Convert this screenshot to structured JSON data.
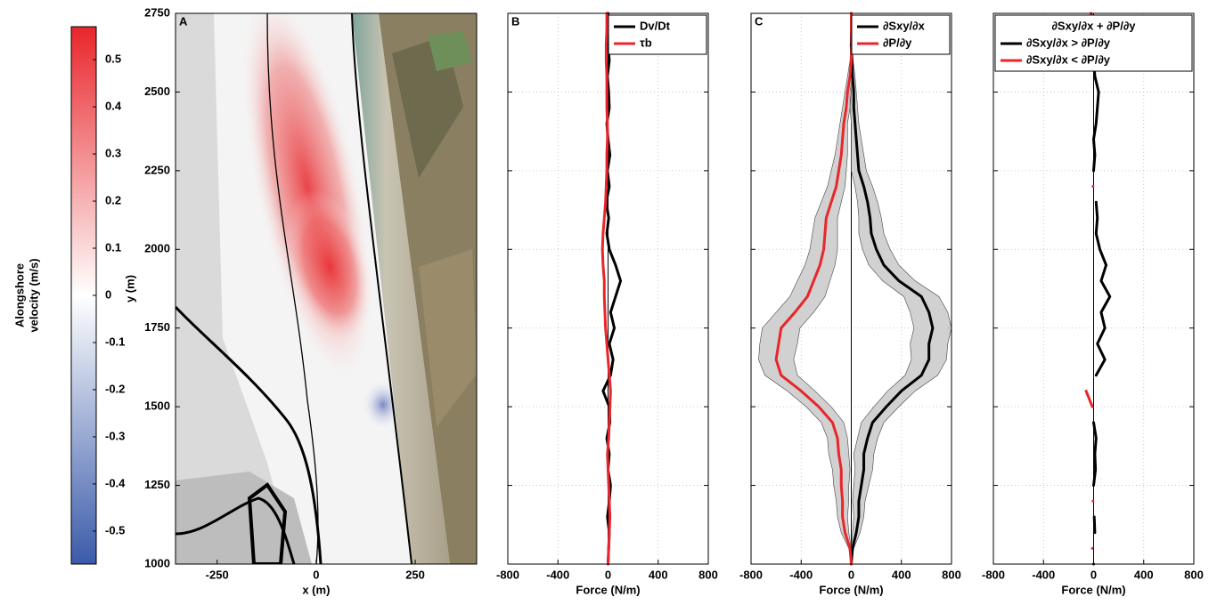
{
  "chart_data": [
    {
      "type": "colorbar",
      "ylabel_lines": [
        "Alongshore",
        "velocity (m/s)"
      ],
      "ylim": [
        -0.57,
        0.57
      ],
      "yticks": [
        -0.5,
        -0.4,
        -0.3,
        -0.2,
        -0.1,
        0,
        0.1,
        0.2,
        0.3,
        0.4,
        0.5
      ],
      "colormap": [
        "#3b5ba9",
        "#ffffff",
        "#e8262b"
      ]
    },
    {
      "type": "map",
      "panel": "A",
      "xlabel": "x (m)",
      "ylabel": "y (m)",
      "xlim": [
        -355,
        405
      ],
      "xticks": [
        -250,
        0,
        250
      ],
      "ylim": [
        1000,
        2750
      ],
      "yticks": [
        1000,
        1250,
        1500,
        1750,
        2000,
        2250,
        2500,
        2750
      ]
    },
    {
      "type": "line",
      "panel": "B",
      "xlabel": "Force (N/m)",
      "xlim": [
        -800,
        800
      ],
      "xticks": [
        -800,
        -400,
        0,
        400,
        800
      ],
      "ylim": [
        1000,
        2750
      ],
      "yticks": [
        1250,
        1500,
        1750,
        2000,
        2250,
        2500
      ],
      "ytick_labels": false,
      "grid": true,
      "y": [
        1000,
        1050,
        1100,
        1150,
        1200,
        1250,
        1300,
        1350,
        1400,
        1450,
        1500,
        1550,
        1600,
        1650,
        1700,
        1750,
        1800,
        1850,
        1900,
        1950,
        2000,
        2050,
        2100,
        2150,
        2200,
        2250,
        2300,
        2350,
        2400,
        2450,
        2500,
        2550,
        2600,
        2650,
        2700,
        2750
      ],
      "series": [
        {
          "name": "Dv/Dt",
          "color": "#000000",
          "values": [
            0,
            5,
            10,
            -5,
            10,
            20,
            0,
            10,
            -10,
            15,
            10,
            -40,
            20,
            40,
            10,
            50,
            20,
            60,
            100,
            60,
            10,
            -10,
            5,
            -15,
            10,
            -5,
            15,
            0,
            -10,
            10,
            5,
            -5,
            10,
            0,
            -5,
            0
          ]
        },
        {
          "name": "τb",
          "color": "#e8262b",
          "values": [
            0,
            5,
            10,
            15,
            10,
            5,
            0,
            -5,
            5,
            10,
            15,
            20,
            10,
            0,
            -10,
            -20,
            -25,
            -30,
            -30,
            -40,
            -45,
            -40,
            -30,
            -20,
            -15,
            -10,
            -10,
            -5,
            -5,
            -10,
            -10,
            -10,
            -15,
            -15,
            -10,
            -10
          ]
        }
      ]
    },
    {
      "type": "line",
      "panel": "C",
      "xlabel": "Force (N/m)",
      "xlim": [
        -800,
        800
      ],
      "xticks": [
        -800,
        -400,
        0,
        400,
        800
      ],
      "ylim": [
        1000,
        2750
      ],
      "yticks": [
        1250,
        1500,
        1750,
        2000,
        2250,
        2500
      ],
      "ytick_labels": false,
      "grid": true,
      "band_color": "#cccccc",
      "y": [
        1000,
        1050,
        1100,
        1150,
        1200,
        1250,
        1300,
        1350,
        1400,
        1450,
        1500,
        1550,
        1600,
        1650,
        1700,
        1750,
        1800,
        1850,
        1900,
        1950,
        2000,
        2050,
        2100,
        2150,
        2200,
        2250,
        2300,
        2350,
        2400,
        2450,
        2500,
        2550,
        2600,
        2650,
        2700,
        2750
      ],
      "series": [
        {
          "name": "∂Sxy/∂x",
          "color": "#000000",
          "values": [
            0,
            10,
            40,
            60,
            60,
            80,
            100,
            100,
            130,
            170,
            280,
            400,
            560,
            620,
            620,
            650,
            620,
            560,
            380,
            260,
            200,
            160,
            150,
            130,
            100,
            60,
            50,
            40,
            30,
            20,
            20,
            10,
            5,
            0,
            0,
            0
          ],
          "errors": [
            0,
            10,
            30,
            40,
            50,
            60,
            70,
            80,
            80,
            90,
            100,
            110,
            130,
            140,
            150,
            150,
            150,
            140,
            130,
            120,
            110,
            100,
            90,
            80,
            70,
            60,
            50,
            40,
            30,
            30,
            20,
            20,
            10,
            10,
            0,
            0
          ]
        },
        {
          "name": "∂P/∂y",
          "color": "#e8262b",
          "values": [
            0,
            -10,
            -50,
            -70,
            -70,
            -80,
            -80,
            -100,
            -110,
            -150,
            -260,
            -400,
            -560,
            -600,
            -580,
            -560,
            -450,
            -350,
            -300,
            -250,
            -220,
            -210,
            -200,
            -160,
            -120,
            -100,
            -80,
            -70,
            -60,
            -40,
            -30,
            -10,
            0,
            5,
            0,
            0
          ],
          "errors": [
            0,
            10,
            30,
            40,
            50,
            60,
            70,
            80,
            80,
            90,
            100,
            110,
            130,
            140,
            150,
            150,
            150,
            140,
            130,
            120,
            110,
            100,
            90,
            80,
            70,
            60,
            50,
            40,
            30,
            30,
            20,
            20,
            10,
            10,
            0,
            0
          ]
        }
      ]
    },
    {
      "type": "line",
      "panel": "D",
      "xlabel": "Force (N/m)",
      "xlim": [
        -800,
        800
      ],
      "xticks": [
        -800,
        -400,
        0,
        400,
        800
      ],
      "ylim": [
        1000,
        2750
      ],
      "yticks": [
        1250,
        1500,
        1750,
        2000,
        2250,
        2500
      ],
      "ytick_labels": false,
      "grid": true,
      "legend_title": "∂Sxy/∂x + ∂P/∂y",
      "y": [
        1000,
        1050,
        1100,
        1150,
        1200,
        1250,
        1300,
        1350,
        1400,
        1450,
        1500,
        1550,
        1600,
        1650,
        1700,
        1750,
        1800,
        1850,
        1900,
        1950,
        2000,
        2050,
        2100,
        2150,
        2200,
        2250,
        2300,
        2350,
        2400,
        2450,
        2500,
        2550,
        2600,
        2650,
        2700,
        2750
      ],
      "series": [
        {
          "name": "∂Sxy/∂x > ∂P/∂y",
          "color": "#000000",
          "values": [
            0,
            null,
            10,
            5,
            null,
            0,
            15,
            10,
            20,
            0,
            null,
            null,
            20,
            90,
            30,
            90,
            60,
            130,
            60,
            100,
            50,
            20,
            30,
            20,
            null,
            0,
            10,
            0,
            20,
            30,
            40,
            10,
            0,
            0,
            null,
            null
          ]
        },
        {
          "name": "∂Sxy/∂x < ∂P/∂y",
          "color": "#e8262b",
          "values": [
            null,
            -10,
            null,
            null,
            -5,
            null,
            null,
            null,
            null,
            null,
            -10,
            -60,
            null,
            null,
            null,
            null,
            null,
            null,
            null,
            null,
            null,
            null,
            null,
            null,
            -5,
            null,
            null,
            null,
            null,
            null,
            null,
            null,
            null,
            null,
            -10,
            -20
          ]
        }
      ]
    }
  ]
}
